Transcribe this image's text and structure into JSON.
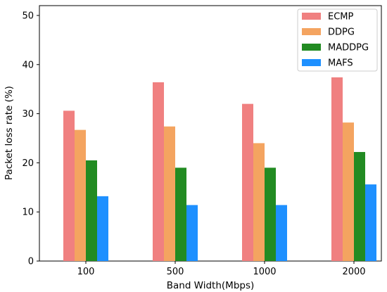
{
  "chart_data": {
    "type": "bar",
    "categories": [
      "100",
      "500",
      "1000",
      "2000"
    ],
    "series": [
      {
        "name": "ECMP",
        "values": [
          30.6,
          36.4,
          32.0,
          37.4
        ],
        "color": "#f08080"
      },
      {
        "name": "DDPG",
        "values": [
          26.7,
          27.4,
          24.0,
          28.2
        ],
        "color": "#f4a460"
      },
      {
        "name": "MADDPG",
        "values": [
          20.5,
          19.0,
          19.0,
          22.2
        ],
        "color": "#228b22"
      },
      {
        "name": "MAFS",
        "values": [
          13.2,
          11.4,
          11.4,
          15.6
        ],
        "color": "#1e90ff"
      }
    ],
    "xlabel": "Band Width(Mbps)",
    "ylabel": "Packet loss rate (%)",
    "ylim": [
      0,
      52
    ],
    "yticks": [
      0,
      10,
      20,
      30,
      40,
      50
    ],
    "grid": false,
    "legend_position": "top-right"
  }
}
